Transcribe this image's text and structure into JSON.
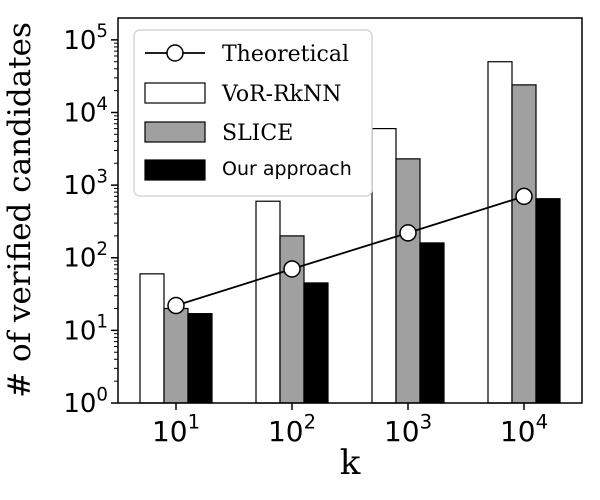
{
  "chart_data": {
    "type": "bar",
    "yscale": "log",
    "title": "",
    "xlabel": "k",
    "ylabel": "# of verified candidates",
    "ylim": [
      1,
      200000
    ],
    "categories": [
      "10^1",
      "10^2",
      "10^3",
      "10^4"
    ],
    "x_tick_labels": [
      {
        "base": "10",
        "exp": "1"
      },
      {
        "base": "10",
        "exp": "2"
      },
      {
        "base": "10",
        "exp": "3"
      },
      {
        "base": "10",
        "exp": "4"
      }
    ],
    "y_ticks": [
      1,
      10,
      100,
      1000,
      10000,
      100000
    ],
    "y_tick_labels": [
      {
        "base": "10",
        "exp": "0"
      },
      {
        "base": "10",
        "exp": "1"
      },
      {
        "base": "10",
        "exp": "2"
      },
      {
        "base": "10",
        "exp": "3"
      },
      {
        "base": "10",
        "exp": "4"
      },
      {
        "base": "10",
        "exp": "5"
      }
    ],
    "series": [
      {
        "name": "VoR-RkNN",
        "kind": "bar",
        "values": [
          60,
          600,
          6000,
          50000
        ]
      },
      {
        "name": "SLICE",
        "kind": "bar",
        "values": [
          20,
          200,
          2300,
          24000
        ]
      },
      {
        "name": "Our approach",
        "kind": "bar",
        "values": [
          17,
          45,
          160,
          650
        ]
      },
      {
        "name": "Theoretical",
        "kind": "line",
        "values": [
          22,
          70,
          220,
          700
        ]
      }
    ],
    "legend": {
      "placement": "top-left",
      "entries": [
        "Theoretical",
        "VoR-RkNN",
        "SLICE",
        "Our approach"
      ]
    }
  },
  "colors": {
    "vor_rknn": "#ffffff",
    "slice": "#a0a0a0",
    "our_approach": "#000000",
    "theoretical_marker": "#ffffff",
    "axis": "#000000"
  }
}
